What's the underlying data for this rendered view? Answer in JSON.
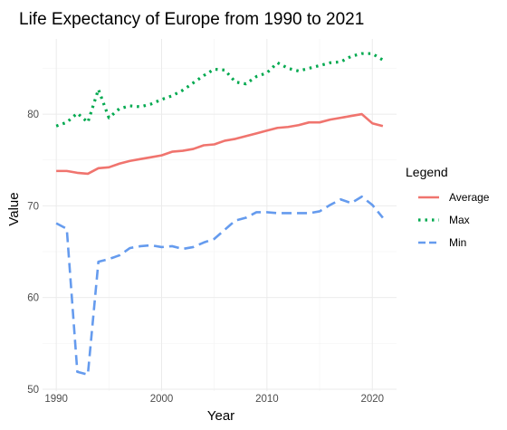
{
  "chart_data": {
    "type": "line",
    "title": "Life Expectancy of Europe from 1990 to 2021",
    "xlabel": "Year",
    "ylabel": "Value",
    "xlim": [
      1988.7,
      2022.3
    ],
    "ylim": [
      49.8,
      88.2
    ],
    "xticks": [
      1990,
      2000,
      2010,
      2020
    ],
    "yticks": [
      50,
      60,
      70,
      80
    ],
    "grid": true,
    "legend": {
      "title": "Legend",
      "position": "right"
    },
    "x": [
      1990,
      1991,
      1992,
      1993,
      1994,
      1995,
      1996,
      1997,
      1998,
      1999,
      2000,
      2001,
      2002,
      2003,
      2004,
      2005,
      2006,
      2007,
      2008,
      2009,
      2010,
      2011,
      2012,
      2013,
      2014,
      2015,
      2016,
      2017,
      2018,
      2019,
      2020,
      2021
    ],
    "series": [
      {
        "name": "Average",
        "color": "#f0746e",
        "dash": "solid",
        "values": [
          73.8,
          73.8,
          73.6,
          73.5,
          74.1,
          74.2,
          74.6,
          74.9,
          75.1,
          75.3,
          75.5,
          75.9,
          76.0,
          76.2,
          76.6,
          76.7,
          77.1,
          77.3,
          77.6,
          77.9,
          78.2,
          78.5,
          78.6,
          78.8,
          79.1,
          79.1,
          79.4,
          79.6,
          79.8,
          80.0,
          79.0,
          78.7
        ]
      },
      {
        "name": "Max",
        "color": "#00a94f",
        "dash": "dotted",
        "values": [
          78.7,
          79.1,
          80.1,
          79.1,
          82.7,
          79.6,
          80.6,
          80.9,
          80.8,
          81.1,
          81.6,
          82.0,
          82.6,
          83.4,
          84.2,
          84.9,
          84.8,
          83.5,
          83.3,
          84.1,
          84.5,
          85.6,
          85.0,
          84.7,
          85.0,
          85.3,
          85.6,
          85.7,
          86.3,
          86.6,
          86.6,
          85.9
        ]
      },
      {
        "name": "Min",
        "color": "#659bee",
        "dash": "dashed",
        "values": [
          68.1,
          67.5,
          51.9,
          51.6,
          63.9,
          64.2,
          64.6,
          65.4,
          65.6,
          65.7,
          65.5,
          65.6,
          65.3,
          65.5,
          66.0,
          66.4,
          67.4,
          68.4,
          68.7,
          69.3,
          69.3,
          69.2,
          69.2,
          69.2,
          69.2,
          69.4,
          70.1,
          70.7,
          70.3,
          71.0,
          70.1,
          68.7
        ]
      }
    ]
  }
}
